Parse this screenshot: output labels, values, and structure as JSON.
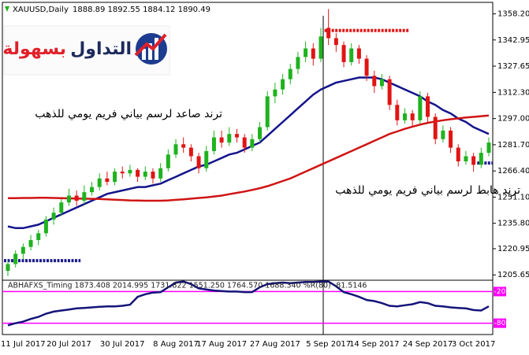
{
  "chart_data": [
    {
      "type": "candlestick",
      "title": "XAUUSD,Daily",
      "subtitle": "1888.89 1892.55 1884.12 1890.49",
      "annotations": [
        "ترند صاعد لرسم بياني فريم يومي للذهب",
        "ترند هابط لرسم بياني فريم يومي للذهب"
      ],
      "logo": [
        "التداول",
        "بسهولة"
      ],
      "categories": [
        null,
        null,
        "11 Jul 2017",
        null,
        null,
        null,
        null,
        null,
        "20 Jul 2017",
        null,
        null,
        null,
        null,
        null,
        null,
        "30 Jul 2017",
        null,
        null,
        null,
        null,
        null,
        null,
        "8 Aug 2017",
        null,
        null,
        null,
        null,
        null,
        "17 Aug 2017",
        null,
        null,
        null,
        null,
        null,
        null,
        "27 Aug 2017",
        null,
        null,
        null,
        null,
        null,
        null,
        "5 Sep 2017",
        null,
        null,
        null,
        null,
        null,
        "14 Sep 2017",
        null,
        null,
        null,
        null,
        null,
        null,
        "24 Sep 2017",
        null,
        null,
        null,
        null,
        null,
        "3 Oct 2017",
        null,
        null
      ],
      "open": [
        1208,
        1212,
        1218,
        1222,
        1226,
        1230,
        1238,
        1242,
        1248,
        1252,
        1249,
        1254,
        1257,
        1262,
        1260,
        1266,
        1265,
        1267,
        1263,
        1266,
        1262,
        1268,
        1276,
        1282,
        1280,
        1275,
        1268,
        1278,
        1286,
        1283,
        1288,
        1286,
        1280,
        1285,
        1292,
        1310,
        1314,
        1320,
        1326,
        1333,
        1338,
        1332,
        1350,
        1344,
        1340,
        1330,
        1338,
        1332,
        1322,
        1316,
        1320,
        1305,
        1296,
        1300,
        1296,
        1310,
        1298,
        1285,
        1290,
        1280,
        1272,
        1275,
        1270,
        1277
      ],
      "high": [
        1214,
        1220,
        1224,
        1229,
        1232,
        1240,
        1245,
        1250,
        1256,
        1255,
        1258,
        1260,
        1265,
        1266,
        1268,
        1269,
        1270,
        1268,
        1269,
        1268,
        1271,
        1279,
        1285,
        1286,
        1282,
        1277,
        1281,
        1290,
        1290,
        1292,
        1291,
        1288,
        1288,
        1295,
        1313,
        1318,
        1323,
        1329,
        1336,
        1342,
        1341,
        1350,
        1361,
        1347,
        1342,
        1341,
        1340,
        1334,
        1325,
        1323,
        1322,
        1308,
        1303,
        1302,
        1313,
        1312,
        1300,
        1293,
        1292,
        1282,
        1278,
        1277,
        1280,
        1286
      ],
      "low": [
        1205,
        1210,
        1215,
        1220,
        1223,
        1228,
        1235,
        1240,
        1246,
        1246,
        1247,
        1252,
        1255,
        1258,
        1258,
        1262,
        1263,
        1260,
        1261,
        1259,
        1260,
        1266,
        1274,
        1277,
        1272,
        1265,
        1266,
        1276,
        1280,
        1281,
        1283,
        1277,
        1278,
        1283,
        1290,
        1306,
        1311,
        1317,
        1323,
        1330,
        1328,
        1330,
        1340,
        1336,
        1327,
        1328,
        1329,
        1319,
        1312,
        1314,
        1302,
        1293,
        1294,
        1292,
        1294,
        1295,
        1282,
        1283,
        1277,
        1269,
        1270,
        1266,
        1268,
        1275
      ],
      "close": [
        1212,
        1218,
        1222,
        1226,
        1230,
        1238,
        1242,
        1248,
        1252,
        1249,
        1254,
        1257,
        1262,
        1260,
        1266,
        1265,
        1267,
        1263,
        1266,
        1262,
        1268,
        1276,
        1282,
        1280,
        1275,
        1268,
        1278,
        1286,
        1283,
        1288,
        1286,
        1280,
        1285,
        1292,
        1310,
        1314,
        1320,
        1326,
        1333,
        1338,
        1332,
        1345,
        1344,
        1340,
        1330,
        1338,
        1332,
        1322,
        1316,
        1320,
        1305,
        1296,
        1300,
        1296,
        1310,
        1298,
        1285,
        1290,
        1280,
        1272,
        1275,
        1270,
        1277,
        1283
      ],
      "up_color": "#1fb21f",
      "down_color": "#e01414",
      "series": [
        {
          "color": "#14148c",
          "values": [
            1234,
            1233,
            1233,
            1234,
            1235,
            1237,
            1239,
            1241,
            1243,
            1245,
            1247,
            1249,
            1251,
            1253,
            1254,
            1255,
            1256,
            1257,
            1257,
            1258,
            1259,
            1261,
            1263,
            1265,
            1267,
            1269,
            1270,
            1272,
            1274,
            1276,
            1277,
            1279,
            1281,
            1283,
            1287,
            1291,
            1295,
            1299,
            1303,
            1307,
            1311,
            1314,
            1316,
            1318,
            1319,
            1320,
            1321,
            1321,
            1321,
            1320,
            1318,
            1316,
            1314,
            1312,
            1310,
            1307,
            1305,
            1302,
            1300,
            1297,
            1295,
            1292,
            1290,
            1288
          ]
        },
        {
          "color": "#d01414",
          "values": [
            1250.5,
            1250.5,
            1250.6,
            1250.6,
            1250.7,
            1250.7,
            1250.6,
            1250.5,
            1250.4,
            1250.3,
            1250.2,
            1250.1,
            1250,
            1249.8,
            1249.6,
            1249.4,
            1249.2,
            1249.1,
            1249,
            1249,
            1249,
            1249.2,
            1249.5,
            1249.8,
            1250.2,
            1250.6,
            1251,
            1251.5,
            1252,
            1252.8,
            1253.6,
            1254.4,
            1255.3,
            1256.3,
            1257.5,
            1259,
            1260.5,
            1262,
            1264,
            1266,
            1268,
            1270,
            1272,
            1274,
            1276,
            1278,
            1280,
            1282,
            1284,
            1286,
            1288,
            1289.5,
            1291,
            1292.3,
            1293.5,
            1294.5,
            1295.3,
            1296,
            1296.6,
            1297.1,
            1297.6,
            1298,
            1298.4,
            1298.8
          ]
        }
      ],
      "levels": [
        {
          "value": 1348.5,
          "color": "#e01414",
          "from": 42,
          "to": 52
        },
        {
          "value": 1214,
          "color": "#1c1c8c",
          "from": 0,
          "to": 9
        },
        {
          "value": 1271,
          "color": "#1c1c8c",
          "from": 62,
          "to": 63
        }
      ],
      "ylim": [
        1203,
        1364
      ],
      "yticks": [
        {
          "value": 1358.2,
          "label": "1358.20"
        },
        1342.95,
        1327.65,
        {
          "value": 1312.3,
          "label": "1312.30"
        },
        {
          "value": 1297,
          "label": "1297.00"
        },
        {
          "value": 1281.7,
          "label": "1281.70"
        },
        {
          "value": 1266.4,
          "label": "1266.40"
        },
        {
          "value": 1251.1,
          "label": "1251.10"
        },
        {
          "value": 1235.8,
          "label": "1235.80"
        },
        1220.95,
        1205.65
      ]
    },
    {
      "type": "line",
      "title": "ABHAFXS_Timing 1873.408 2014.995 1731.822 1551.250 1764.570 1688.340 %R(80) -81.5146",
      "series": [
        {
          "color": "#14147a",
          "values": [
            -84,
            -80,
            -77,
            -72,
            -68,
            -62,
            -58,
            -56,
            -54,
            -52,
            -51,
            -50,
            -49,
            -48,
            -48,
            -47,
            -45,
            -30,
            -25,
            -22,
            -21,
            -12,
            -3,
            -1,
            -6,
            -14,
            -16,
            -18,
            -19,
            -20,
            -20,
            -21,
            -21,
            -12,
            -6,
            -4,
            -3,
            -4,
            -3,
            -2,
            -2,
            -1,
            -1,
            -10,
            -21,
            -25,
            -30,
            -36,
            -38,
            -42,
            -47,
            -48,
            -46,
            -44,
            -40,
            -42,
            -47,
            -48,
            -50,
            -51,
            -52,
            -55,
            -56,
            -48
          ]
        }
      ],
      "level_color": "#ff00ff",
      "ylim": [
        -100,
        0
      ],
      "yticks": [
        -20,
        -80
      ]
    }
  ]
}
